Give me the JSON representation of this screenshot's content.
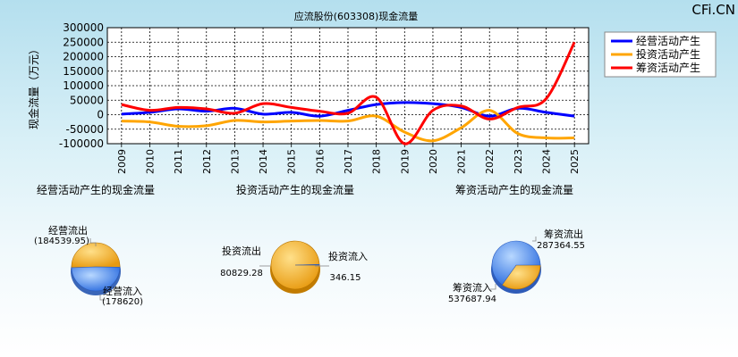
{
  "watermark": "CFi.CN",
  "colors": {
    "operating": "#0000ff",
    "investing": "#ffa500",
    "financing": "#ff0000",
    "pie_light": "#ffcc55",
    "pie_dark": "#e08a00",
    "pie_blue_light": "#8fbfff",
    "pie_blue_dark": "#3a78e0"
  },
  "chart_data": [
    {
      "type": "line",
      "title": "应流股份(603308)现金流量",
      "ylabel": "现金流量（万元）",
      "ylim": [
        -100000,
        300000
      ],
      "yticks": [
        "300000",
        "250000",
        "200000",
        "150000",
        "100000",
        "50000",
        "0",
        "-50000",
        "-100000"
      ],
      "x": [
        "2009",
        "2010",
        "2011",
        "2012",
        "2013",
        "2014",
        "2015",
        "2016",
        "2017",
        "2018",
        "2019",
        "2020",
        "2021",
        "2022",
        "2023",
        "2024",
        "2025"
      ],
      "grid": true,
      "legend": "top-right",
      "series": [
        {
          "name": "经营活动产生",
          "color_key": "operating",
          "values": [
            2000,
            8000,
            20000,
            12000,
            22000,
            2000,
            8000,
            -5000,
            15000,
            35000,
            42000,
            38000,
            25000,
            -5000,
            22000,
            8000,
            -5000
          ]
        },
        {
          "name": "投资活动产生",
          "color_key": "investing",
          "values": [
            -22000,
            -25000,
            -40000,
            -38000,
            -20000,
            -25000,
            -22000,
            -20000,
            -22000,
            -5000,
            -60000,
            -90000,
            -45000,
            15000,
            -65000,
            -80000,
            -80000
          ]
        },
        {
          "name": "筹资活动产生",
          "color_key": "financing",
          "values": [
            35000,
            15000,
            25000,
            20000,
            5000,
            38000,
            25000,
            12000,
            5000,
            60000,
            -100000,
            15000,
            30000,
            -15000,
            25000,
            55000,
            250000
          ]
        }
      ]
    },
    {
      "type": "pie",
      "title": "经营活动产生的现金流量",
      "slices": [
        {
          "label": "经营流出",
          "value_text": "(184539.95)",
          "value": 184539.95
        },
        {
          "label": "经营流入",
          "value_text": "(178620)",
          "value": 178620
        }
      ]
    },
    {
      "type": "pie",
      "title": "投资活动产生的现金流量",
      "slices": [
        {
          "label": "投资流出",
          "value_text": "80829.28",
          "value": 80829.28
        },
        {
          "label": "投资流入",
          "value_text": "346.15",
          "value": 346.15
        }
      ]
    },
    {
      "type": "pie",
      "title": "筹资活动产生的现金流量",
      "slices": [
        {
          "label": "筹资流出",
          "value_text": "287364.55",
          "value": 287364.55
        },
        {
          "label": "筹资流入",
          "value_text": "537687.94",
          "value": 537687.94
        }
      ]
    }
  ]
}
